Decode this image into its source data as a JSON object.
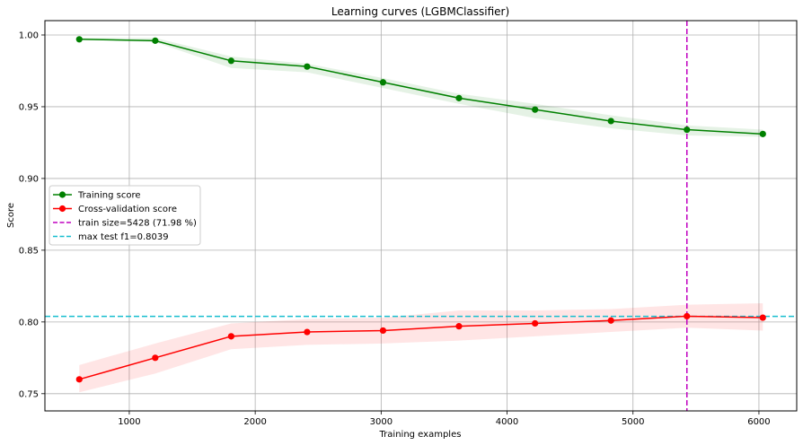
{
  "chart_data": {
    "type": "line",
    "title": "Learning curves (LGBMClassifier)",
    "xlabel": "Training examples",
    "ylabel": "Score",
    "xlim": [
      330,
      6300
    ],
    "ylim": [
      0.738,
      1.01
    ],
    "xticks": [
      1000,
      2000,
      3000,
      4000,
      5000,
      6000
    ],
    "yticks": [
      0.75,
      0.8,
      0.85,
      0.9,
      0.95,
      1.0
    ],
    "xtick_labels": [
      "1000",
      "2000",
      "3000",
      "4000",
      "5000",
      "6000"
    ],
    "ytick_labels": [
      "0.75",
      "0.80",
      "0.85",
      "0.90",
      "0.95",
      "1.00"
    ],
    "grid": true,
    "legend_position": "center-left",
    "x": [
      603,
      1206,
      1809,
      2412,
      3015,
      3618,
      4222,
      4825,
      5428,
      6031
    ],
    "series": [
      {
        "name": "Training score",
        "color": "#008000",
        "marker": "circle",
        "values": [
          0.997,
          0.996,
          0.982,
          0.978,
          0.967,
          0.956,
          0.948,
          0.94,
          0.934,
          0.931
        ],
        "band_low": [
          0.997,
          0.995,
          0.977,
          0.974,
          0.963,
          0.952,
          0.942,
          0.935,
          0.93,
          0.929
        ],
        "band_high": [
          0.998,
          0.998,
          0.985,
          0.98,
          0.97,
          0.959,
          0.952,
          0.944,
          0.937,
          0.934
        ]
      },
      {
        "name": "Cross-validation score",
        "color": "#ff0000",
        "marker": "circle",
        "values": [
          0.76,
          0.775,
          0.79,
          0.793,
          0.794,
          0.797,
          0.799,
          0.801,
          0.804,
          0.803
        ],
        "band_low": [
          0.751,
          0.764,
          0.781,
          0.784,
          0.785,
          0.787,
          0.79,
          0.793,
          0.796,
          0.794
        ],
        "band_high": [
          0.77,
          0.785,
          0.799,
          0.802,
          0.803,
          0.808,
          0.808,
          0.809,
          0.812,
          0.813
        ]
      }
    ],
    "reference_lines": [
      {
        "name": "train size=5428 (71.98 %)",
        "orientation": "vertical",
        "value": 5428,
        "color": "#c000c0",
        "style": "dashed"
      },
      {
        "name": "max test f1=0.8039",
        "orientation": "horizontal",
        "value": 0.8039,
        "color": "#17becf",
        "style": "dashed"
      }
    ]
  }
}
